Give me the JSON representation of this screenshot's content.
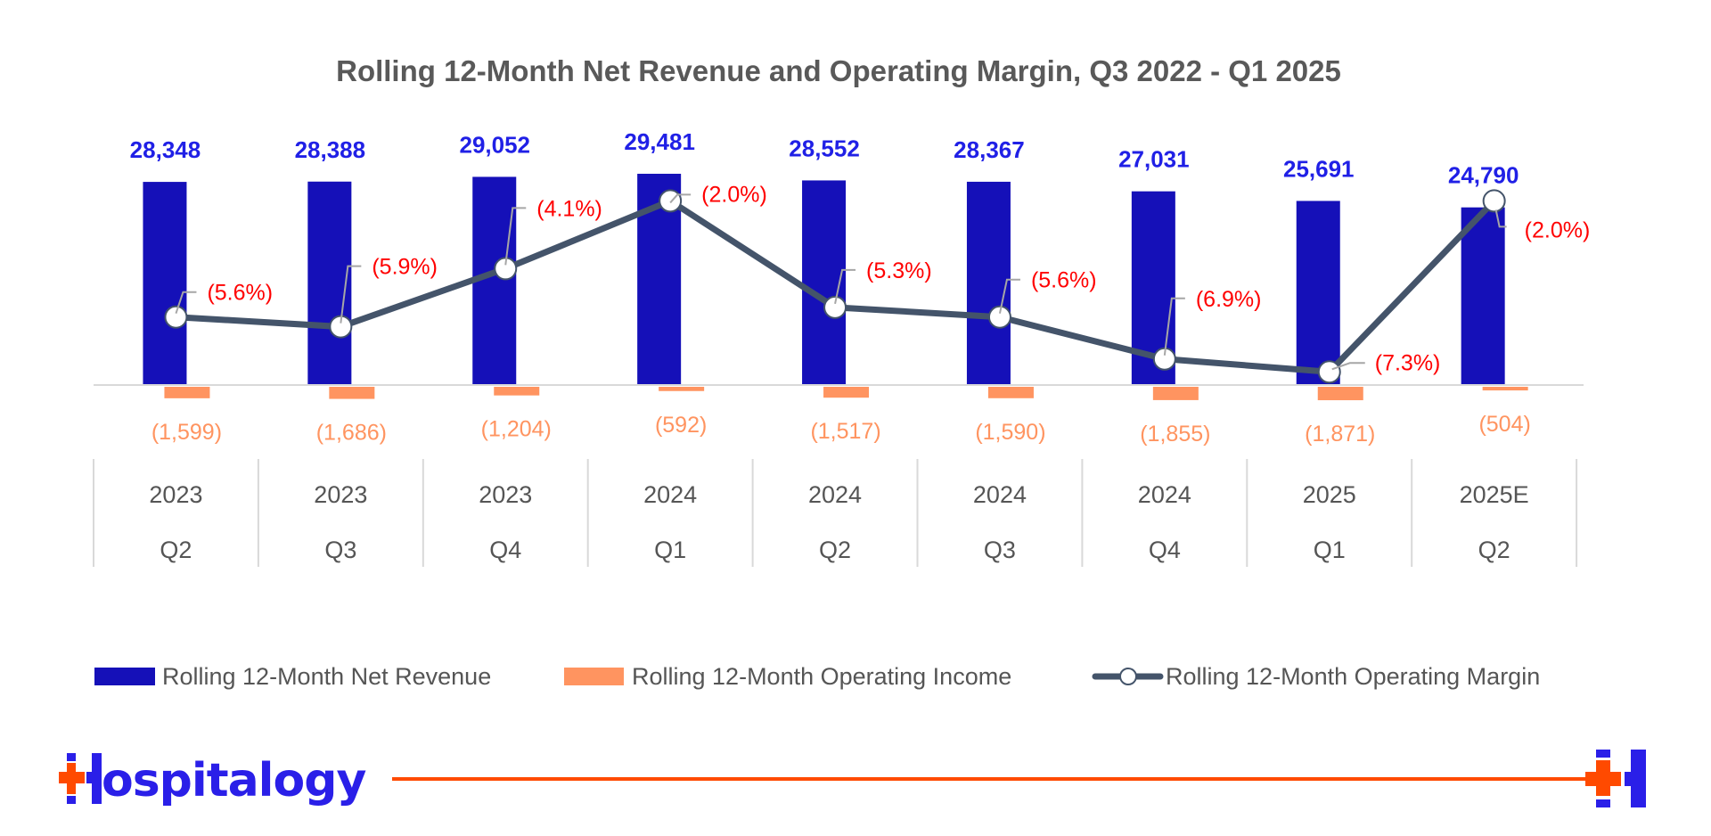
{
  "chart_data": {
    "type": "bar",
    "title": "Rolling 12-Month Net Revenue and Operating Margin, Q3 2022 - Q1 2025",
    "categories": [
      {
        "year": "2023",
        "quarter": "Q2"
      },
      {
        "year": "2023",
        "quarter": "Q3"
      },
      {
        "year": "2023",
        "quarter": "Q4"
      },
      {
        "year": "2024",
        "quarter": "Q1"
      },
      {
        "year": "2024",
        "quarter": "Q2"
      },
      {
        "year": "2024",
        "quarter": "Q3"
      },
      {
        "year": "2024",
        "quarter": "Q4"
      },
      {
        "year": "2025",
        "quarter": "Q1"
      },
      {
        "year": "2025E",
        "quarter": "Q2"
      }
    ],
    "series": [
      {
        "name": "Rolling 12-Month Net Revenue",
        "type": "bar",
        "color": "#1510B8",
        "label_color": "#2020E6",
        "values": [
          28348,
          28388,
          29052,
          29481,
          28552,
          28367,
          27031,
          25691,
          24790
        ],
        "labels": [
          "28,348",
          "28,388",
          "29,052",
          "29,481",
          "28,552",
          "28,367",
          "27,031",
          "25,691",
          "24,790"
        ]
      },
      {
        "name": "Rolling 12-Month Operating Income",
        "type": "bar",
        "color": "#FF9460",
        "label_color": "#FF9460",
        "values": [
          -1599,
          -1686,
          -1204,
          -592,
          -1517,
          -1590,
          -1855,
          -1871,
          -504
        ],
        "labels": [
          "(1,599)",
          "(1,686)",
          "(1,204)",
          "(592)",
          "(1,517)",
          "(1,590)",
          "(1,855)",
          "(1,871)",
          "(504)"
        ]
      },
      {
        "name": "Rolling 12-Month Operating Margin",
        "type": "line",
        "color": "#44546A",
        "label_color": "#FF0000",
        "axis": "secondary",
        "unit": "%",
        "values": [
          -5.6,
          -5.9,
          -4.1,
          -2.0,
          -5.3,
          -5.6,
          -6.9,
          -7.3,
          -2.0
        ],
        "labels": [
          "(5.6%)",
          "(5.9%)",
          "(4.1%)",
          "(2.0%)",
          "(5.3%)",
          "(5.6%)",
          "(6.9%)",
          "(7.3%)",
          "(2.0%)"
        ]
      }
    ],
    "xlabel": "",
    "ylabel": "",
    "grid": false,
    "axes_visible": false,
    "legend_position": "bottom"
  },
  "branding": {
    "logo_text": "ospitalogy",
    "logo_letter": "H",
    "brand_blue": "#2A1FE8",
    "brand_orange": "#FF4A00"
  }
}
